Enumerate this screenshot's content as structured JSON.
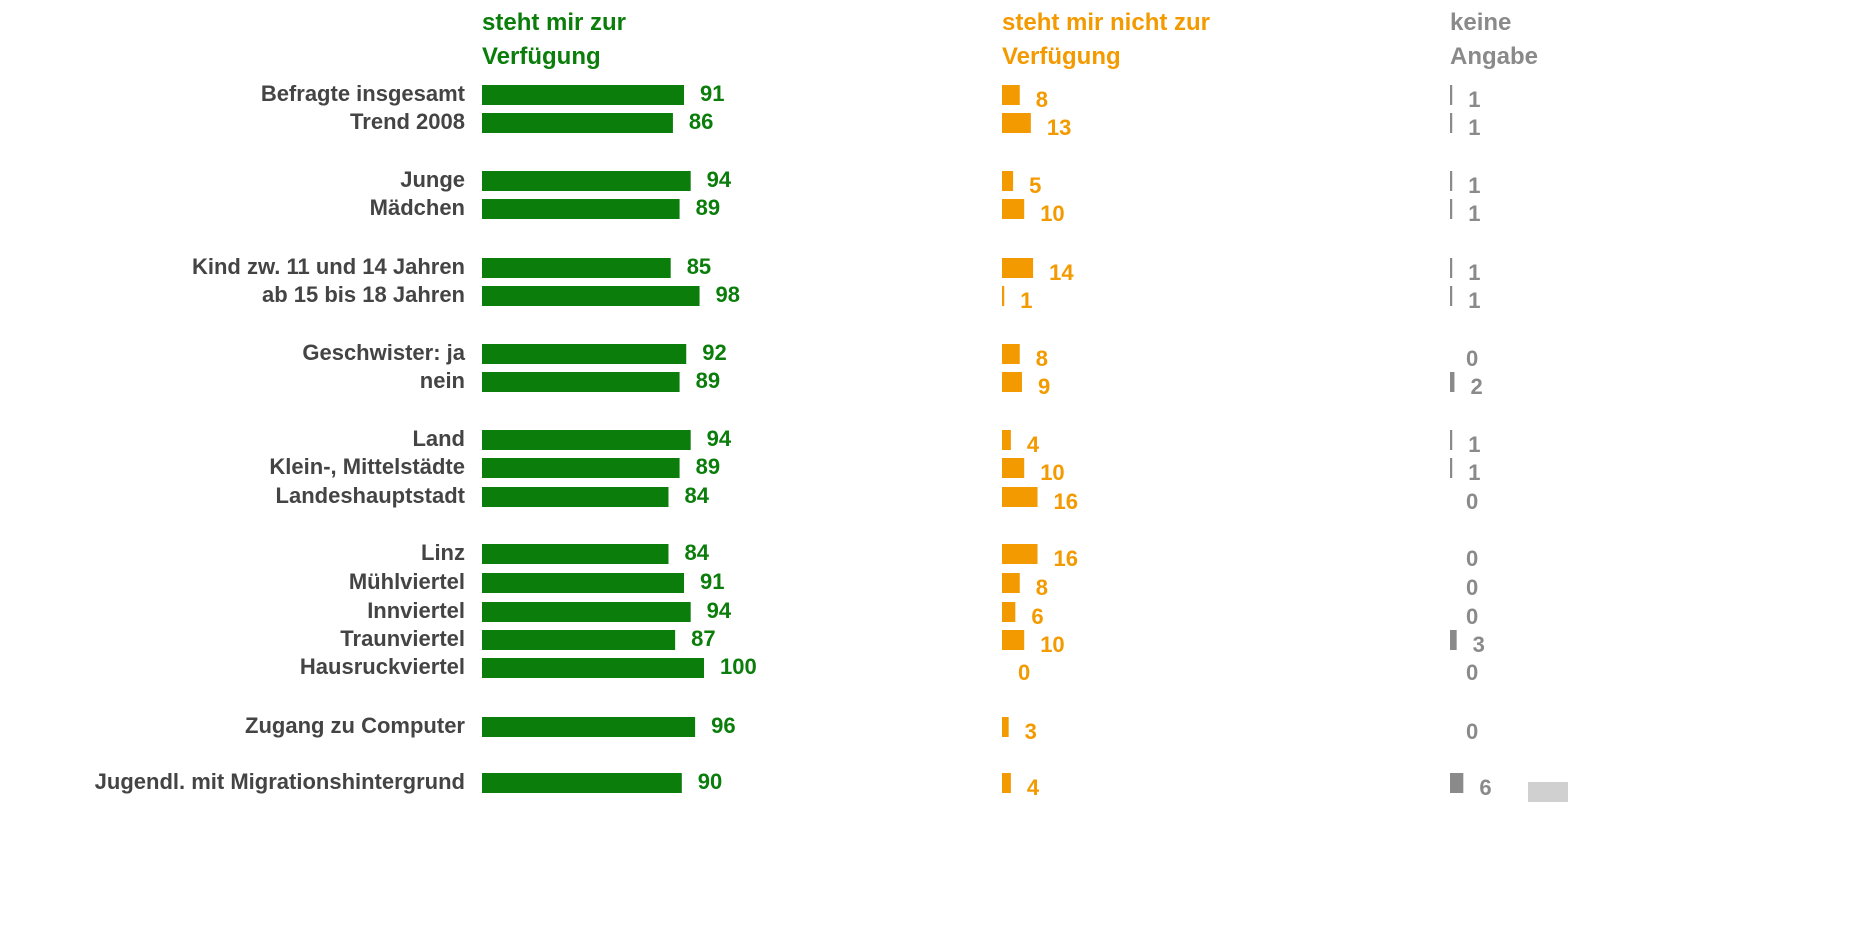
{
  "chart_data": {
    "type": "bar",
    "orientation": "horizontal",
    "categories": [
      "Befragte insgesamt",
      "Trend 2008",
      "Junge",
      "Mädchen",
      "Kind zw. 11 und 14 Jahren",
      "ab 15 bis 18 Jahren",
      "Geschwister: ja",
      "nein",
      "Land",
      "Klein-, Mittelstädte",
      "Landeshauptstadt",
      "Linz",
      "Mühlviertel",
      "Innviertel",
      "Traunviertel",
      "Hausruckviertel",
      "Zugang zu Computer",
      "Jugendl. mit Migrationshintergrund"
    ],
    "series": [
      {
        "name": "steht mir zur Verfügung",
        "color": "#0a7d0a",
        "values": [
          91,
          86,
          94,
          89,
          85,
          98,
          92,
          89,
          94,
          89,
          84,
          84,
          91,
          94,
          87,
          100,
          96,
          90
        ]
      },
      {
        "name": "steht mir nicht zur Verfügung",
        "color": "#f39a00",
        "values": [
          8,
          13,
          5,
          10,
          14,
          1,
          8,
          9,
          4,
          10,
          16,
          16,
          8,
          6,
          10,
          0,
          3,
          4
        ]
      },
      {
        "name": "keine Angabe",
        "color": "#8a8a8a",
        "values": [
          1,
          1,
          1,
          1,
          1,
          1,
          0,
          2,
          1,
          1,
          0,
          0,
          0,
          0,
          3,
          0,
          0,
          6
        ]
      }
    ]
  }
}
